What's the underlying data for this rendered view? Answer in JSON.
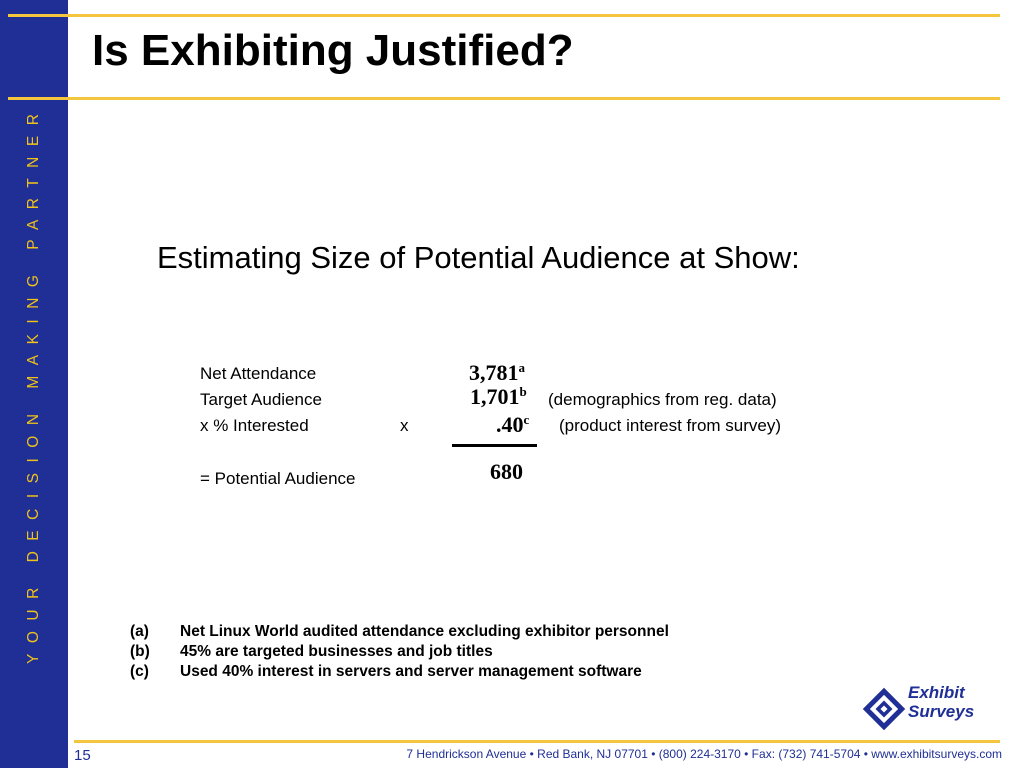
{
  "sidebar": {
    "tagline": "YOUR DECISION MAKING PARTNER"
  },
  "title": "Is Exhibiting Justified?",
  "subtitle": "Estimating Size of Potential Audience at Show:",
  "calculation": {
    "net_attendance": {
      "label": "Net Attendance",
      "value": "3,781",
      "sup": "a"
    },
    "target_audience": {
      "label": "Target Audience",
      "value": "1,701",
      "sup": "b",
      "note": "(demographics from reg. data)"
    },
    "interested": {
      "label": "x % Interested",
      "operator": "x",
      "value": ".40",
      "sup": "c",
      "note": "(product interest from survey)"
    },
    "potential": {
      "label": "= Potential Audience",
      "value": "680"
    }
  },
  "footnotes": [
    {
      "key": "(a)",
      "text": "Net Linux World  audited attendance excluding exhibitor personnel"
    },
    {
      "key": "(b)",
      "text": "45% are targeted businesses and job titles"
    },
    {
      "key": "(c)",
      "text": "Used 40% interest in servers and server management software"
    }
  ],
  "logo": {
    "line1": "Exhibit",
    "line2": "Surveys"
  },
  "footer": {
    "page_number": "15",
    "address": "7 Hendrickson Avenue   •   Red Bank, NJ 07701   •   (800) 224-3170   •   Fax: (732) 741-5704   •   www.exhibitsurveys.com"
  },
  "colors": {
    "sidebar": "#1f2f96",
    "accent": "#f1c219",
    "rule": "#f4c63d"
  }
}
